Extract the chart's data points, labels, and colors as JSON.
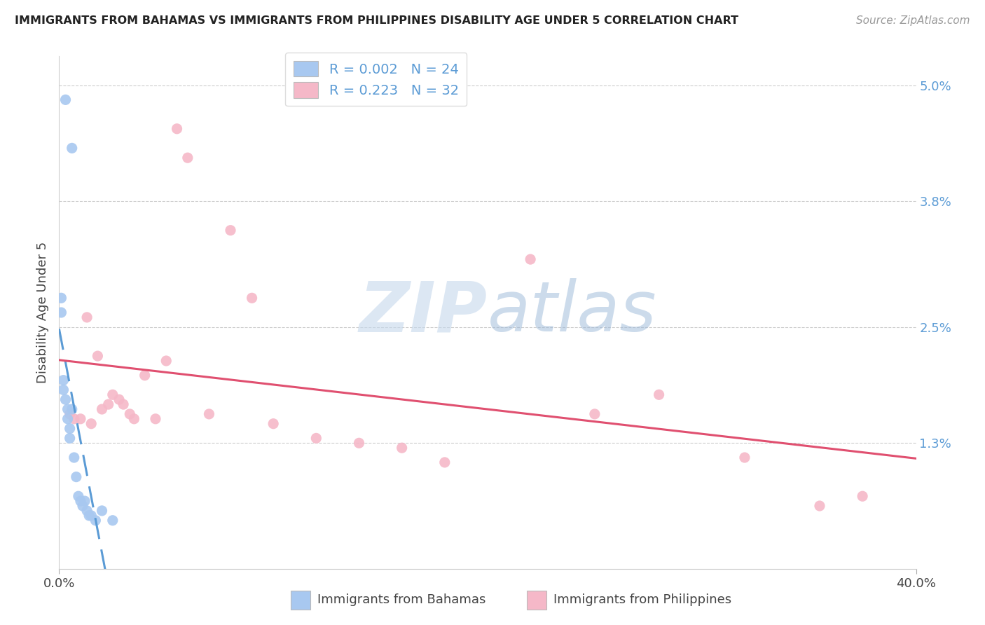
{
  "title": "IMMIGRANTS FROM BAHAMAS VS IMMIGRANTS FROM PHILIPPINES DISABILITY AGE UNDER 5 CORRELATION CHART",
  "source": "Source: ZipAtlas.com",
  "ylabel": "Disability Age Under 5",
  "y_ticks": [
    0.0,
    1.3,
    2.5,
    3.8,
    5.0
  ],
  "y_tick_labels": [
    "",
    "1.3%",
    "2.5%",
    "3.8%",
    "5.0%"
  ],
  "x_lim": [
    0.0,
    40.0
  ],
  "y_lim": [
    0.0,
    5.3
  ],
  "legend_r1": "R = 0.002",
  "legend_n1": "N = 24",
  "legend_r2": "R = 0.223",
  "legend_n2": "N = 32",
  "color_bahamas": "#a8c8f0",
  "color_philippines": "#f5b8c8",
  "color_bahamas_line": "#5b9bd5",
  "color_philippines_line": "#e05070",
  "watermark_zip": "ZIP",
  "watermark_atlas": "atlas",
  "bahamas_x": [
    0.3,
    0.6,
    0.1,
    0.1,
    0.2,
    0.2,
    0.3,
    0.4,
    0.4,
    0.5,
    0.5,
    0.6,
    0.7,
    0.8,
    0.9,
    1.0,
    1.1,
    1.2,
    1.3,
    1.4,
    1.5,
    1.7,
    2.0,
    2.5
  ],
  "bahamas_y": [
    4.85,
    4.35,
    2.8,
    2.65,
    1.95,
    1.85,
    1.75,
    1.65,
    1.55,
    1.45,
    1.35,
    1.65,
    1.15,
    0.95,
    0.75,
    0.7,
    0.65,
    0.7,
    0.6,
    0.55,
    0.55,
    0.5,
    0.6,
    0.5
  ],
  "philippines_x": [
    0.5,
    0.7,
    1.0,
    1.3,
    1.5,
    1.8,
    2.0,
    2.3,
    2.5,
    2.8,
    3.0,
    3.3,
    3.5,
    4.0,
    4.5,
    5.0,
    5.5,
    6.0,
    7.0,
    8.0,
    9.0,
    10.0,
    12.0,
    14.0,
    16.0,
    18.0,
    22.0,
    25.0,
    28.0,
    32.0,
    35.5,
    37.5
  ],
  "philippines_y": [
    1.6,
    1.55,
    1.55,
    2.6,
    1.5,
    2.2,
    1.65,
    1.7,
    1.8,
    1.75,
    1.7,
    1.6,
    1.55,
    2.0,
    1.55,
    2.15,
    4.55,
    4.25,
    1.6,
    3.5,
    2.8,
    1.5,
    1.35,
    1.3,
    1.25,
    1.1,
    3.2,
    1.6,
    1.8,
    1.15,
    0.65,
    0.75
  ]
}
